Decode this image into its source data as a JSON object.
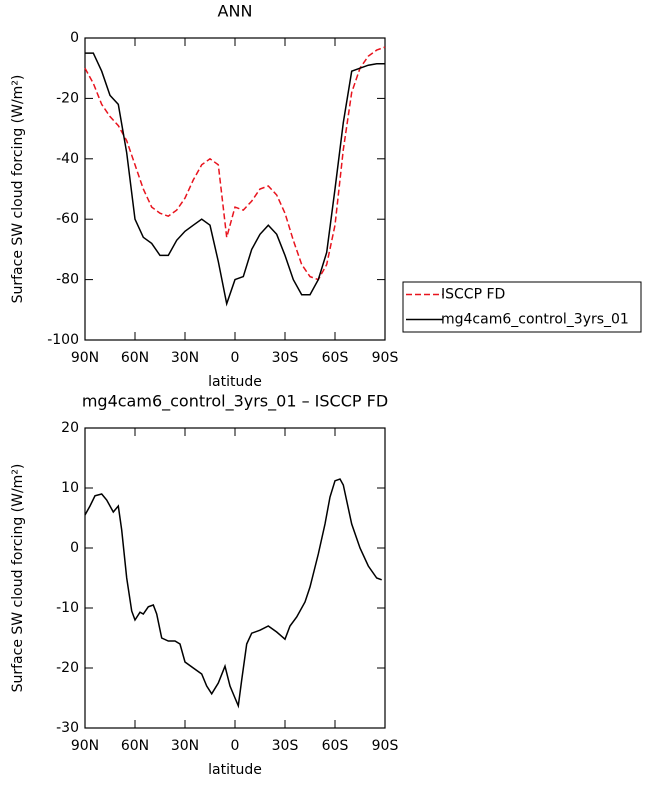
{
  "chart_data": [
    {
      "type": "line",
      "title": "ANN",
      "x_label": "latitude",
      "y_label": "Surface SW cloud forcing (W/m²)",
      "x": [
        90,
        85,
        80,
        75,
        70,
        65,
        60,
        55,
        50,
        45,
        40,
        35,
        30,
        25,
        20,
        15,
        10,
        5,
        0,
        -5,
        -10,
        -15,
        -20,
        -25,
        -30,
        -35,
        -40,
        -45,
        -50,
        -55,
        -60,
        -65,
        -70,
        -75,
        -80,
        -85,
        -90
      ],
      "series": [
        {
          "name": "ISCCP FD",
          "color": "#e8141e",
          "linestyle": "dashed",
          "values": [
            -10,
            -15,
            -22,
            -26,
            -29,
            -34,
            -42,
            -50,
            -56,
            -58,
            -59,
            -57,
            -53,
            -47,
            -42,
            -40,
            -42,
            -66,
            -56,
            -57,
            -54,
            -50,
            -49,
            -52,
            -58,
            -67,
            -75,
            -79,
            -80,
            -75,
            -62,
            -37,
            -18,
            -10,
            -6,
            -4,
            -3
          ]
        },
        {
          "name": "mg4cam6_control_3yrs_01",
          "color": "#000000",
          "linestyle": "solid",
          "values": [
            -5,
            -5,
            -11,
            -19,
            -22,
            -38,
            -60,
            -66,
            -68,
            -72,
            -72,
            -67,
            -64,
            -62,
            -60,
            -62,
            -74,
            -88,
            -80,
            -79,
            -70,
            -65,
            -62,
            -65,
            -72,
            -80,
            -85,
            -85,
            -80,
            -71,
            -50,
            -28,
            -11,
            -10,
            -9,
            -8.5,
            -8.5
          ]
        }
      ],
      "xlim": [
        90,
        -90
      ],
      "xticks": [
        {
          "value": 90,
          "label": "90N"
        },
        {
          "value": 60,
          "label": "60N"
        },
        {
          "value": 30,
          "label": "30N"
        },
        0,
        {
          "value": -30,
          "label": "30S"
        },
        {
          "value": -60,
          "label": "60S"
        },
        {
          "value": -90,
          "label": "90S"
        }
      ],
      "ylim": [
        -100,
        0
      ],
      "yticks": [
        -100,
        -80,
        -60,
        -40,
        -20,
        0
      ],
      "legend": "right"
    },
    {
      "type": "line",
      "title": "mg4cam6_control_3yrs_01 – ISCCP FD",
      "x_label": "latitude",
      "y_label": "Surface SW cloud forcing (W/m²)",
      "x": [
        90,
        87,
        84,
        80,
        77,
        73,
        70,
        68,
        65,
        62,
        60,
        57,
        55,
        52,
        49,
        47,
        44,
        40,
        36,
        33,
        30,
        25,
        20,
        17,
        14,
        10,
        6,
        3,
        0,
        -2,
        -4,
        -7,
        -10,
        -15,
        -20,
        -25,
        -30,
        -33,
        -37,
        -42,
        -45,
        -50,
        -54,
        -57,
        -60,
        -63,
        -65,
        -70,
        -75,
        -80,
        -85,
        -88
      ],
      "series": [
        {
          "name": "mg4cam6_control_3yrs_01 – ISCCP FD",
          "color": "#000000",
          "linestyle": "solid",
          "values": [
            5.5,
            7,
            8.7,
            9,
            8,
            6,
            7,
            3,
            -5,
            -10.5,
            -12,
            -10.7,
            -11,
            -9.8,
            -9.5,
            -11,
            -15,
            -15.5,
            -15.5,
            -16,
            -19,
            -20,
            -21,
            -23,
            -24.3,
            -22.5,
            -19.7,
            -23,
            -25,
            -26.3,
            -22,
            -16,
            -14.2,
            -13.7,
            -13,
            -14,
            -15.2,
            -13,
            -11.5,
            -9,
            -6.5,
            -1,
            4,
            8.5,
            11.2,
            11.5,
            10.5,
            4,
            0,
            -3,
            -5,
            -5.3
          ]
        }
      ],
      "xlim": [
        90,
        -90
      ],
      "xticks": [
        {
          "value": 90,
          "label": "90N"
        },
        {
          "value": 60,
          "label": "60N"
        },
        {
          "value": 30,
          "label": "30N"
        },
        0,
        {
          "value": -30,
          "label": "30S"
        },
        {
          "value": -60,
          "label": "60S"
        },
        {
          "value": -90,
          "label": "90S"
        }
      ],
      "ylim": [
        -30,
        20
      ],
      "yticks": [
        -30,
        -20,
        -10,
        0,
        10,
        20
      ]
    }
  ]
}
